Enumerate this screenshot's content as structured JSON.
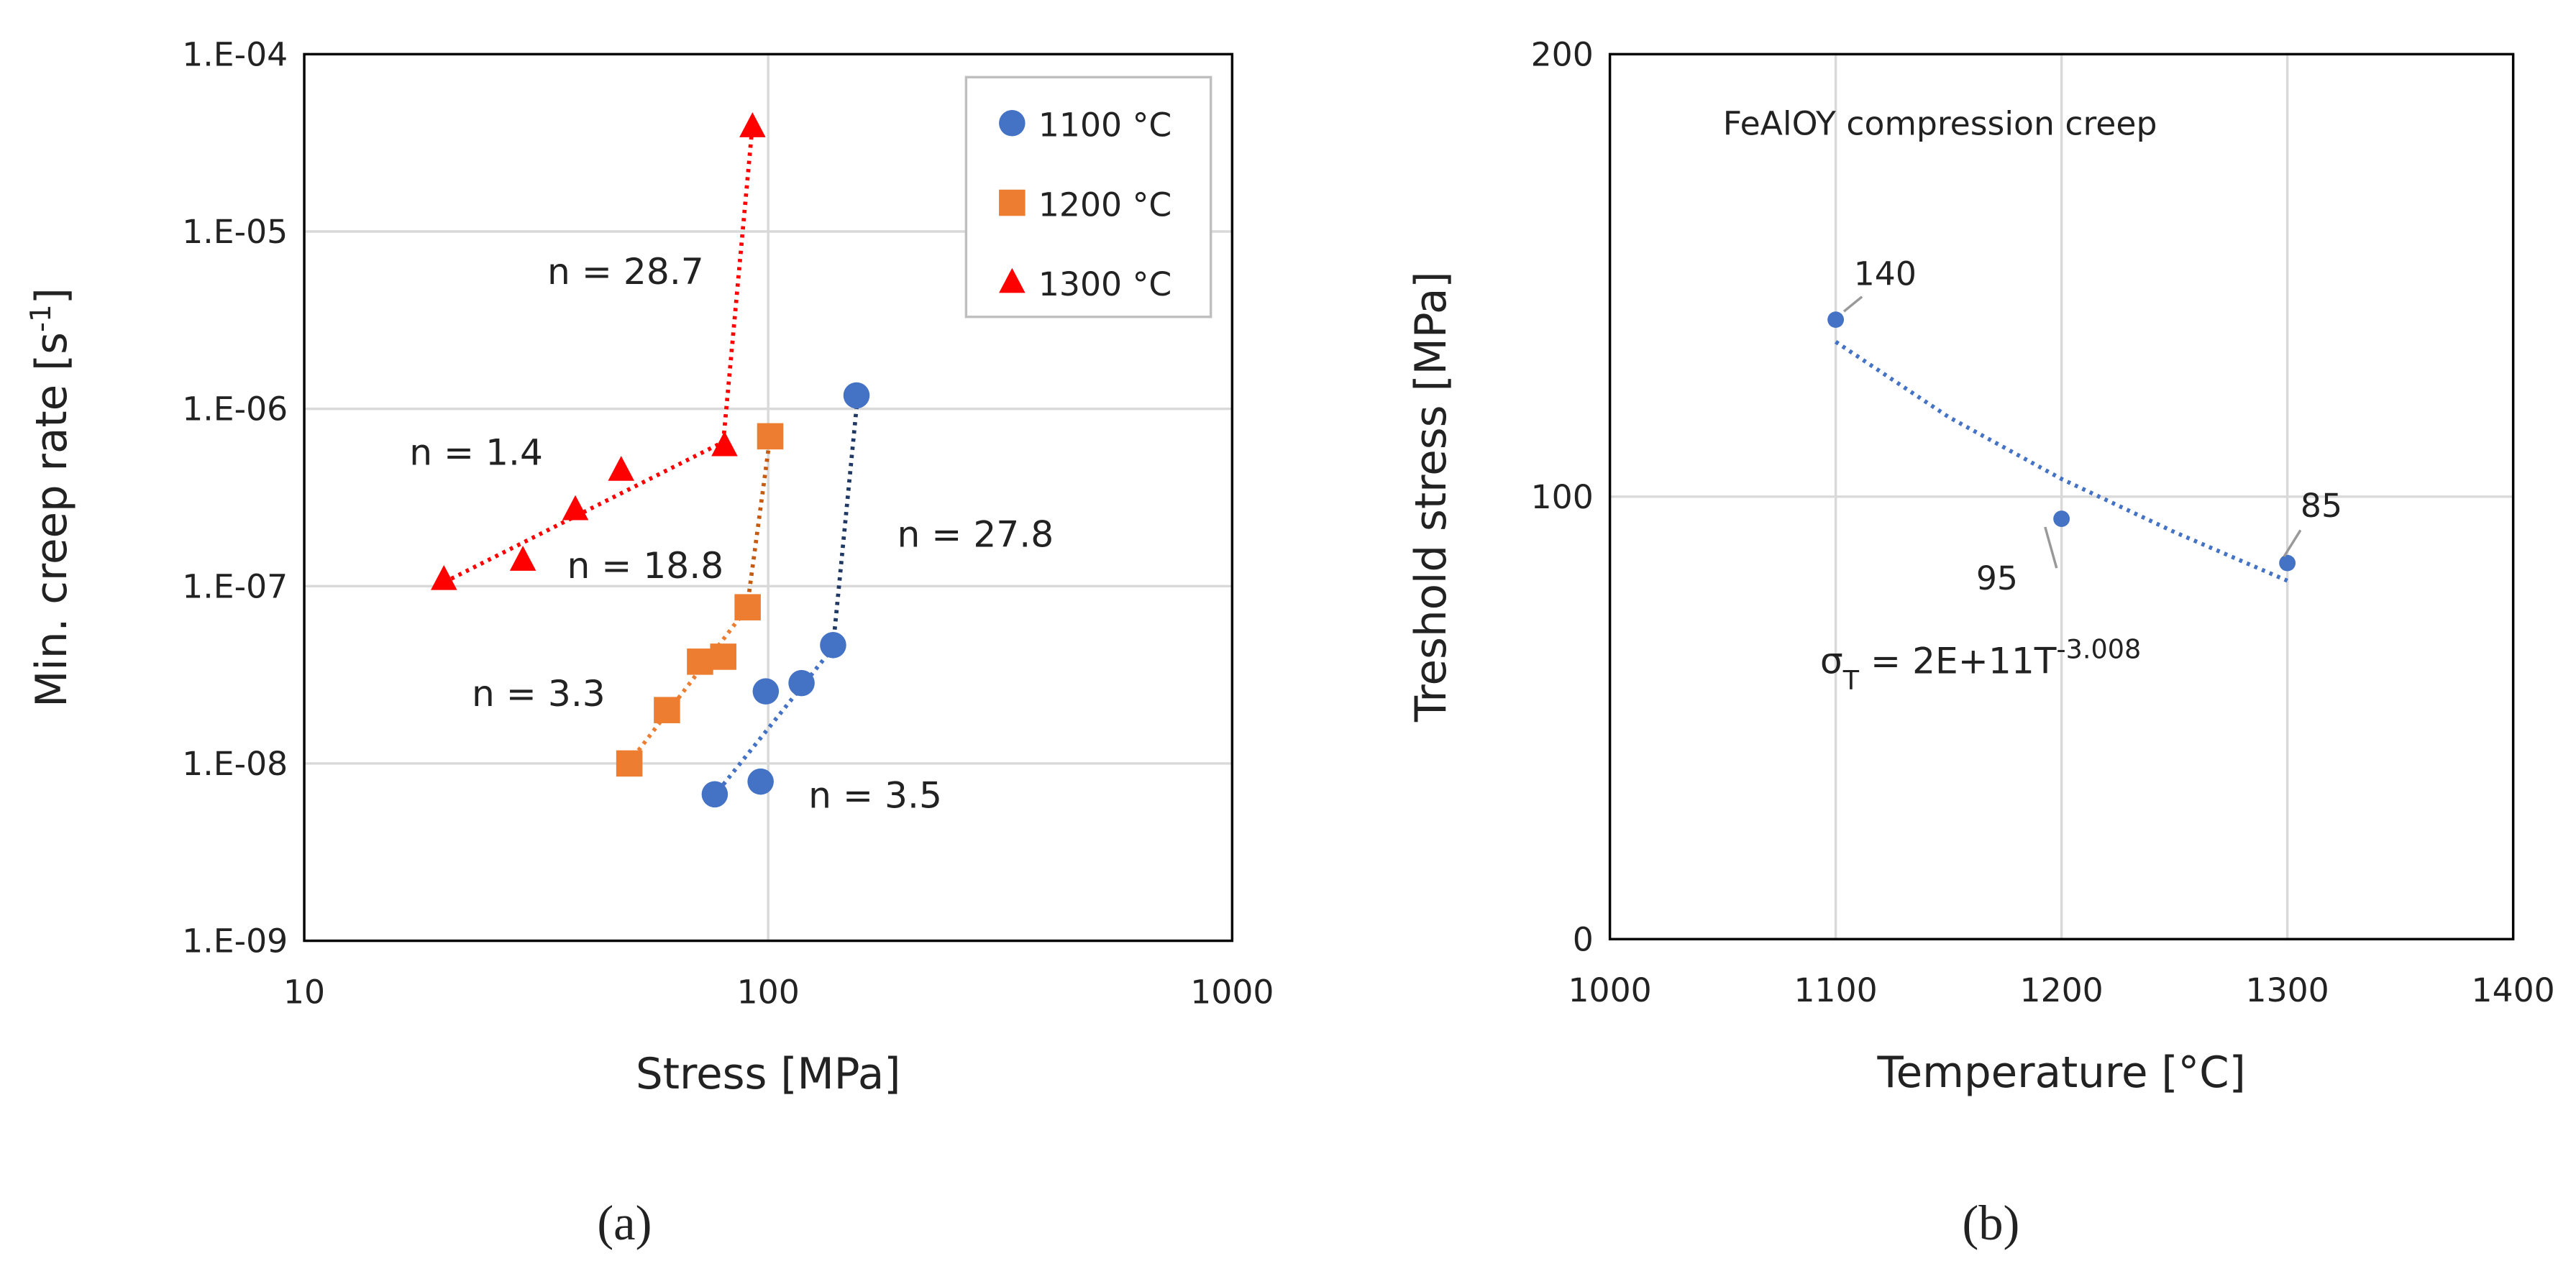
{
  "chart_data": [
    {
      "type": "scatter",
      "x_log": true,
      "y_log": true,
      "xlabel": "Stress [MPa]",
      "ylabel_parts": [
        "Min. creep rate [s",
        "-1",
        "]"
      ],
      "xlim": [
        10,
        1000
      ],
      "ylim": [
        1e-09,
        0.0001
      ],
      "xticks": [
        10,
        100,
        1000
      ],
      "yticks": [
        {
          "value": 1e-09,
          "label": "1.E-09"
        },
        {
          "value": 1e-08,
          "label": "1.E-08"
        },
        {
          "value": 1e-07,
          "label": "1.E-07"
        },
        {
          "value": 1e-06,
          "label": "1.E-06"
        },
        {
          "value": 1e-05,
          "label": "1.E-05"
        },
        {
          "value": 0.0001,
          "label": "1.E-04"
        }
      ],
      "grid": true,
      "legend": "upper right",
      "caption": "(a)",
      "series": [
        {
          "name": "1100 °C",
          "color": "#4472c4",
          "marker": "circle",
          "x": [
            76.7,
            96.3,
            98.8,
            118,
            138,
            155
          ],
          "values": [
            6.7e-09,
            7.9e-09,
            2.55e-08,
            2.84e-08,
            4.65e-08,
            1.19e-06
          ],
          "fits": [
            {
              "label": "n = 3.5",
              "color": "#4472c4",
              "x": [
                78,
                138
              ],
              "y": [
                7e-09,
                4.5e-08
              ]
            },
            {
              "label": "n = 27.8",
              "color": "#203864",
              "x": [
                138,
                156
              ],
              "y": [
                4.6e-08,
                1.2e-06
              ]
            }
          ]
        },
        {
          "name": "1200 °C",
          "color": "#ed7d31",
          "marker": "square",
          "x": [
            50.2,
            60.5,
            71.3,
            80,
            90.3,
            101
          ],
          "values": [
            1e-08,
            2e-08,
            3.75e-08,
            4e-08,
            7.6e-08,
            7e-07
          ],
          "fits": [
            {
              "label": "n = 3.3",
              "color": "#ed7d31",
              "x": [
                50,
                90
              ],
              "y": [
                1e-08,
                7.5e-08
              ]
            },
            {
              "label": "n = 18.8",
              "color": "#c55a11",
              "x": [
                90,
                101
              ],
              "y": [
                7.5e-08,
                7e-07
              ]
            }
          ]
        },
        {
          "name": "1300 °C",
          "color": "#ff0000",
          "marker": "triangle",
          "x": [
            20,
            29.6,
            38.4,
            48.2,
            80.5,
            92.5
          ],
          "values": [
            1.09e-07,
            1.4e-07,
            2.7e-07,
            4.5e-07,
            6.2e-07,
            3.9e-05
          ],
          "fits": [
            {
              "label": "n = 1.4",
              "color": "#ff0000",
              "x": [
                20,
                80
              ],
              "y": [
                1.05e-07,
                6.5e-07
              ]
            },
            {
              "label": "n = 28.7",
              "color": "#ff0000",
              "x": [
                80,
                92.5
              ],
              "y": [
                6.5e-07,
                4e-05
              ]
            }
          ]
        }
      ]
    },
    {
      "type": "scatter",
      "title": "FeAlOY compression creep",
      "xlabel": "Temperature [°C]",
      "ylabel": "Treshold stress [MPa]",
      "xlim": [
        1000,
        1400
      ],
      "ylim": [
        0,
        200
      ],
      "xticks": [
        1000,
        1100,
        1200,
        1300,
        1400
      ],
      "yticks": [
        0,
        100,
        200
      ],
      "grid": true,
      "caption": "(b)",
      "series": [
        {
          "color": "#4472c4",
          "marker": "circle",
          "x": [
            1100,
            1200,
            1300
          ],
          "values": [
            140,
            95,
            85
          ],
          "fit": {
            "x": [
              1100,
              1150,
              1200,
              1250,
              1300
            ],
            "y": [
              135,
              118,
              104,
              92,
              81
            ],
            "equation_parts": [
              "σ",
              "T",
              " = 2E+11T",
              "-3.008"
            ]
          }
        }
      ]
    }
  ]
}
